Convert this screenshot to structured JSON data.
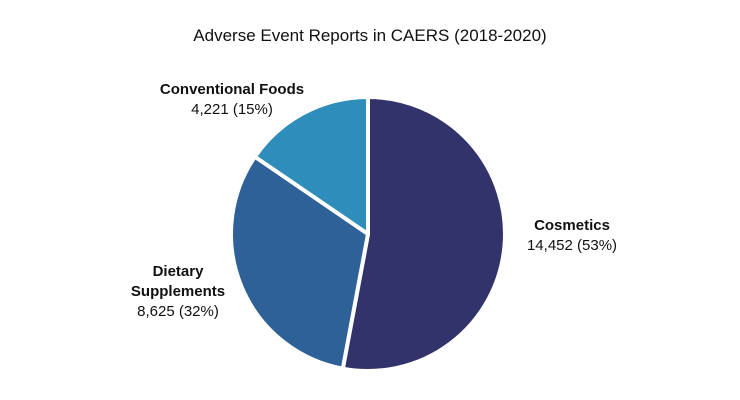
{
  "chart_data": {
    "type": "pie",
    "title": "Adverse Event Reports in CAERS (2018-2020)",
    "start": "12 o'clock",
    "direction": "clockwise",
    "slices": [
      {
        "label": "Cosmetics",
        "label_lines": [
          "Cosmetics"
        ],
        "value": 14452,
        "value_text": "14,452 (53%)",
        "percent": 53,
        "color": "#32336b"
      },
      {
        "label": "Dietary Supplements",
        "label_lines": [
          "Dietary",
          "Supplements"
        ],
        "value": 8625,
        "value_text": "8,625 (32%)",
        "percent": 32,
        "color": "#2f6199"
      },
      {
        "label": "Conventional Foods",
        "label_lines": [
          "Conventional Foods"
        ],
        "value": 4221,
        "value_text": "4,221 (15%)",
        "percent": 15,
        "color": "#2e8dba"
      }
    ]
  }
}
